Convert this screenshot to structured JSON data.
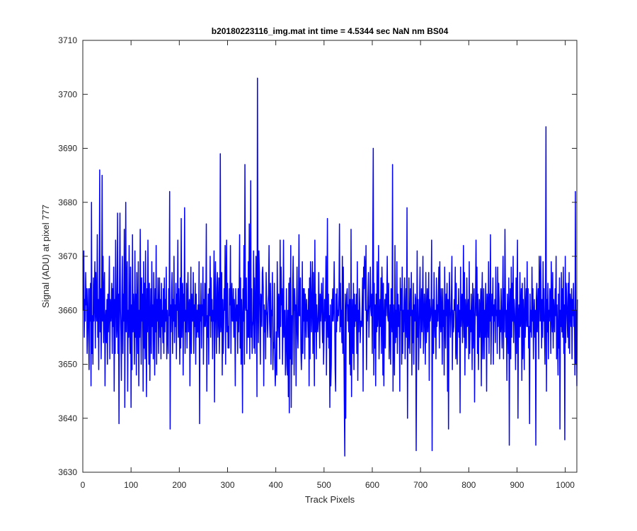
{
  "chart_data": {
    "type": "line",
    "title": "b20180223116_img.mat int time = 4.5344 sec  NaN nm BS04",
    "xlabel": "Track Pixels",
    "ylabel": "Signal (ADU) at pixel 777",
    "xlim": [
      0,
      1024
    ],
    "ylim": [
      3630,
      3710
    ],
    "xticks": [
      0,
      100,
      200,
      300,
      400,
      500,
      600,
      700,
      800,
      900,
      1000
    ],
    "yticks": [
      3630,
      3640,
      3650,
      3660,
      3670,
      3680,
      3690,
      3700,
      3710
    ],
    "grid": false,
    "legend": "none",
    "series": [
      {
        "color": "#0000ff",
        "x_start": 1,
        "x_step": 1,
        "values": [
          3660,
          3671,
          3655,
          3662,
          3658,
          3667,
          3661,
          3664,
          3652,
          3659,
          3664,
          3656,
          3649,
          3664,
          3658,
          3665,
          3646,
          3680,
          3652,
          3659,
          3650,
          3666,
          3658,
          3662,
          3669,
          3653,
          3667,
          3660,
          3658,
          3674,
          3655,
          3662,
          3649,
          3663,
          3686,
          3656,
          3664,
          3651,
          3659,
          3685,
          3658,
          3670,
          3654,
          3663,
          3667,
          3646,
          3658,
          3660,
          3654,
          3662,
          3650,
          3663,
          3656,
          3661,
          3670,
          3651,
          3662,
          3658,
          3660,
          3665,
          3652,
          3664,
          3657,
          3668,
          3645,
          3662,
          3652,
          3673,
          3663,
          3655,
          3657,
          3678,
          3652,
          3663,
          3639,
          3664,
          3678,
          3660,
          3656,
          3647,
          3662,
          3670,
          3652,
          3663,
          3658,
          3675,
          3642,
          3662,
          3680,
          3656,
          3664,
          3669,
          3645,
          3660,
          3655,
          3672,
          3658,
          3652,
          3668,
          3642,
          3661,
          3649,
          3674,
          3656,
          3663,
          3659,
          3650,
          3671,
          3655,
          3663,
          3648,
          3667,
          3659,
          3652,
          3669,
          3646,
          3660,
          3655,
          3675,
          3660,
          3650,
          3666,
          3658,
          3663,
          3645,
          3669,
          3653,
          3665,
          3651,
          3671,
          3658,
          3644,
          3664,
          3656,
          3673,
          3660,
          3650,
          3665,
          3647,
          3658,
          3664,
          3652,
          3669,
          3657,
          3661,
          3651,
          3667,
          3659,
          3648,
          3664,
          3656,
          3672,
          3650,
          3662,
          3658,
          3666,
          3652,
          3660,
          3666,
          3655,
          3662,
          3651,
          3665,
          3657,
          3660,
          3654,
          3664,
          3652,
          3666,
          3656,
          3662,
          3658,
          3668,
          3651,
          3660,
          3656,
          3652,
          3664,
          3659,
          3682,
          3638,
          3661,
          3656,
          3663,
          3667,
          3652,
          3662,
          3658,
          3670,
          3654,
          3661,
          3657,
          3665,
          3651,
          3663,
          3660,
          3673,
          3655,
          3664,
          3658,
          3650,
          3666,
          3653,
          3677,
          3655,
          3662,
          3665,
          3648,
          3663,
          3658,
          3679,
          3652,
          3660,
          3656,
          3665,
          3653,
          3662,
          3667,
          3656,
          3660,
          3662,
          3646,
          3659,
          3668,
          3652,
          3663,
          3658,
          3658,
          3667,
          3652,
          3661,
          3657,
          3665,
          3650,
          3663,
          3655,
          3660,
          3656,
          3661,
          3655,
          3669,
          3639,
          3661,
          3658,
          3665,
          3653,
          3661,
          3659,
          3668,
          3650,
          3662,
          3657,
          3665,
          3657,
          3660,
          3676,
          3645,
          3659,
          3655,
          3663,
          3650,
          3664,
          3659,
          3670,
          3655,
          3666,
          3658,
          3662,
          3651,
          3660,
          3658,
          3671,
          3643,
          3662,
          3669,
          3658,
          3652,
          3664,
          3667,
          3655,
          3660,
          3666,
          3652,
          3659,
          3689,
          3656,
          3659,
          3667,
          3648,
          3662,
          3652,
          3657,
          3664,
          3660,
          3672,
          3650,
          3665,
          3673,
          3656,
          3665,
          3653,
          3657,
          3653,
          3664,
          3661,
          3672,
          3652,
          3662,
          3665,
          3658,
          3658,
          3664,
          3655,
          3662,
          3659,
          3646,
          3664,
          3660,
          3658,
          3661,
          3652,
          3664,
          3656,
          3662,
          3674,
          3653,
          3666,
          3650,
          3662,
          3658,
          3641,
          3664,
          3658,
          3672,
          3650,
          3687,
          3661,
          3660,
          3666,
          3652,
          3660,
          3655,
          3669,
          3655,
          3676,
          3651,
          3661,
          3684,
          3655,
          3664,
          3652,
          3657,
          3658,
          3671,
          3653,
          3666,
          3652,
          3659,
          3670,
          3661,
          3644,
          3703,
          3661,
          3654,
          3671,
          3667,
          3658,
          3650,
          3663,
          3662,
          3657,
          3667,
          3668,
          3664,
          3646,
          3661,
          3656,
          3660,
          3651,
          3667,
          3660,
          3659,
          3655,
          3661,
          3663,
          3672,
          3658,
          3655,
          3665,
          3650,
          3660,
          3659,
          3667,
          3649,
          3654,
          3653,
          3665,
          3650,
          3646,
          3650,
          3656,
          3648,
          3669,
          3660,
          3655,
          3663,
          3661,
          3651,
          3673,
          3657,
          3668,
          3661,
          3664,
          3650,
          3658,
          3673,
          3655,
          3658,
          3660,
          3648,
          3650,
          3664,
          3655,
          3648,
          3660,
          3644,
          3665,
          3641,
          3666,
          3651,
          3672,
          3642,
          3659,
          3650,
          3664,
          3670,
          3659,
          3648,
          3664,
          3660,
          3661,
          3646,
          3659,
          3668,
          3656,
          3653,
          3660,
          3674,
          3659,
          3659,
          3666,
          3653,
          3649,
          3653,
          3669,
          3652,
          3664,
          3658,
          3664,
          3651,
          3663,
          3660,
          3655,
          3662,
          3658,
          3660,
          3655,
          3664,
          3646,
          3666,
          3651,
          3669,
          3663,
          3656,
          3662,
          3669,
          3652,
          3667,
          3658,
          3646,
          3673,
          3656,
          3663,
          3651,
          3661,
          3658,
          3656,
          3658,
          3667,
          3660,
          3653,
          3663,
          3658,
          3661,
          3665,
          3658,
          3654,
          3666,
          3650,
          3655,
          3662,
          3658,
          3660,
          3670,
          3648,
          3660,
          3677,
          3655,
          3663,
          3653,
          3659,
          3642,
          3661,
          3646,
          3650,
          3662,
          3658,
          3664,
          3658,
          3660,
          3669,
          3659,
          3649,
          3645,
          3663,
          3656,
          3664,
          3658,
          3660,
          3659,
          3663,
          3676,
          3656,
          3665,
          3657,
          3660,
          3654,
          3670,
          3652,
          3668,
          3656,
          3643,
          3633,
          3663,
          3640,
          3660,
          3663,
          3664,
          3658,
          3661,
          3656,
          3665,
          3650,
          3662,
          3648,
          3675,
          3644,
          3658,
          3662,
          3652,
          3665,
          3649,
          3663,
          3657,
          3661,
          3658,
          3663,
          3652,
          3669,
          3647,
          3660,
          3656,
          3664,
          3661,
          3654,
          3658,
          3657,
          3657,
          3661,
          3666,
          3645,
          3668,
          3664,
          3670,
          3668,
          3660,
          3672,
          3649,
          3660,
          3658,
          3663,
          3667,
          3655,
          3660,
          3661,
          3668,
          3660,
          3659,
          3663,
          3652,
          3672,
          3690,
          3648,
          3665,
          3653,
          3661,
          3646,
          3663,
          3656,
          3669,
          3657,
          3660,
          3672,
          3651,
          3657,
          3662,
          3657,
          3666,
          3652,
          3668,
          3663,
          3648,
          3665,
          3646,
          3658,
          3662,
          3653,
          3663,
          3659,
          3662,
          3670,
          3659,
          3658,
          3665,
          3651,
          3657,
          3661,
          3650,
          3664,
          3659,
          3656,
          3687,
          3645,
          3661,
          3655,
          3648,
          3672,
          3654,
          3660,
          3655,
          3669,
          3652,
          3663,
          3657,
          3661,
          3658,
          3645,
          3666,
          3660,
          3664,
          3650,
          3668,
          3652,
          3660,
          3656,
          3662,
          3666,
          3651,
          3659,
          3664,
          3655,
          3679,
          3640,
          3660,
          3653,
          3666,
          3657,
          3652,
          3664,
          3659,
          3667,
          3648,
          3660,
          3654,
          3665,
          3650,
          3661,
          3658,
          3663,
          3662,
          3634,
          3655,
          3671,
          3655,
          3662,
          3649,
          3656,
          3662,
          3668,
          3653,
          3658,
          3664,
          3656,
          3661,
          3670,
          3652,
          3657,
          3663,
          3659,
          3650,
          3667,
          3654,
          3658,
          3664,
          3656,
          3660,
          3667,
          3647,
          3662,
          3658,
          3659,
          3661,
          3673,
          3634,
          3658,
          3662,
          3652,
          3667,
          3659,
          3655,
          3660,
          3651,
          3666,
          3657,
          3661,
          3658,
          3663,
          3668,
          3653,
          3669,
          3658,
          3656,
          3664,
          3660,
          3650,
          3664,
          3657,
          3660,
          3648,
          3668,
          3658,
          3653,
          3663,
          3659,
          3665,
          3645,
          3662,
          3638,
          3660,
          3667,
          3660,
          3655,
          3658,
          3663,
          3670,
          3649,
          3660,
          3656,
          3657,
          3662,
          3660,
          3668,
          3651,
          3665,
          3653,
          3650,
          3661,
          3656,
          3664,
          3655,
          3660,
          3641,
          3668,
          3657,
          3661,
          3663,
          3654,
          3660,
          3672,
          3655,
          3667,
          3648,
          3662,
          3659,
          3653,
          3666,
          3657,
          3658,
          3662,
          3651,
          3669,
          3652,
          3660,
          3656,
          3663,
          3658,
          3649,
          3665,
          3653,
          3660,
          3664,
          3643,
          3657,
          3662,
          3673,
          3659,
          3668,
          3652,
          3663,
          3649,
          3657,
          3662,
          3655,
          3660,
          3664,
          3646,
          3662,
          3667,
          3651,
          3658,
          3664,
          3651,
          3660,
          3655,
          3665,
          3659,
          3645,
          3663,
          3661,
          3655,
          3669,
          3652,
          3663,
          3658,
          3674,
          3650,
          3657,
          3663,
          3659,
          3666,
          3650,
          3661,
          3658,
          3662,
          3654,
          3668,
          3659,
          3660,
          3652,
          3668,
          3657,
          3665,
          3662,
          3651,
          3660,
          3656,
          3664,
          3658,
          3653,
          3661,
          3670,
          3651,
          3664,
          3656,
          3675,
          3662,
          3655,
          3660,
          3647,
          3663,
          3658,
          3652,
          3666,
          3635,
          3660,
          3664,
          3651,
          3668,
          3655,
          3665,
          3658,
          3670,
          3654,
          3662,
          3660,
          3657,
          3649,
          3666,
          3652,
          3663,
          3673,
          3640,
          3659,
          3661,
          3655,
          3667,
          3657,
          3660,
          3664,
          3647,
          3665,
          3651,
          3662,
          3658,
          3649,
          3666,
          3655,
          3660,
          3664,
          3657,
          3669,
          3657,
          3664,
          3653,
          3657,
          3639,
          3663,
          3656,
          3660,
          3655,
          3668,
          3658,
          3664,
          3651,
          3659,
          3662,
          3655,
          3660,
          3635,
          3662,
          3665,
          3656,
          3660,
          3664,
          3651,
          3670,
          3665,
          3658,
          3670,
          3660,
          3653,
          3662,
          3655,
          3669,
          3658,
          3664,
          3656,
          3650,
          3661,
          3694,
          3645,
          3662,
          3656,
          3665,
          3651,
          3660,
          3658,
          3664,
          3663,
          3652,
          3669,
          3659,
          3656,
          3667,
          3653,
          3662,
          3659,
          3656,
          3664,
          3659,
          3670,
          3651,
          3661,
          3655,
          3648,
          3663,
          3653,
          3666,
          3638,
          3660,
          3657,
          3667,
          3656,
          3664,
          3655,
          3668,
          3652,
          3661,
          3636,
          3670,
          3654,
          3665,
          3662,
          3658,
          3655,
          3665,
          3653,
          3667,
          3652,
          3663,
          3661,
          3657,
          3664,
          3651,
          3662,
          3659,
          3665,
          3657,
          3660,
          3648,
          3682,
          3650,
          3660,
          3646,
          3662
        ]
      }
    ]
  }
}
